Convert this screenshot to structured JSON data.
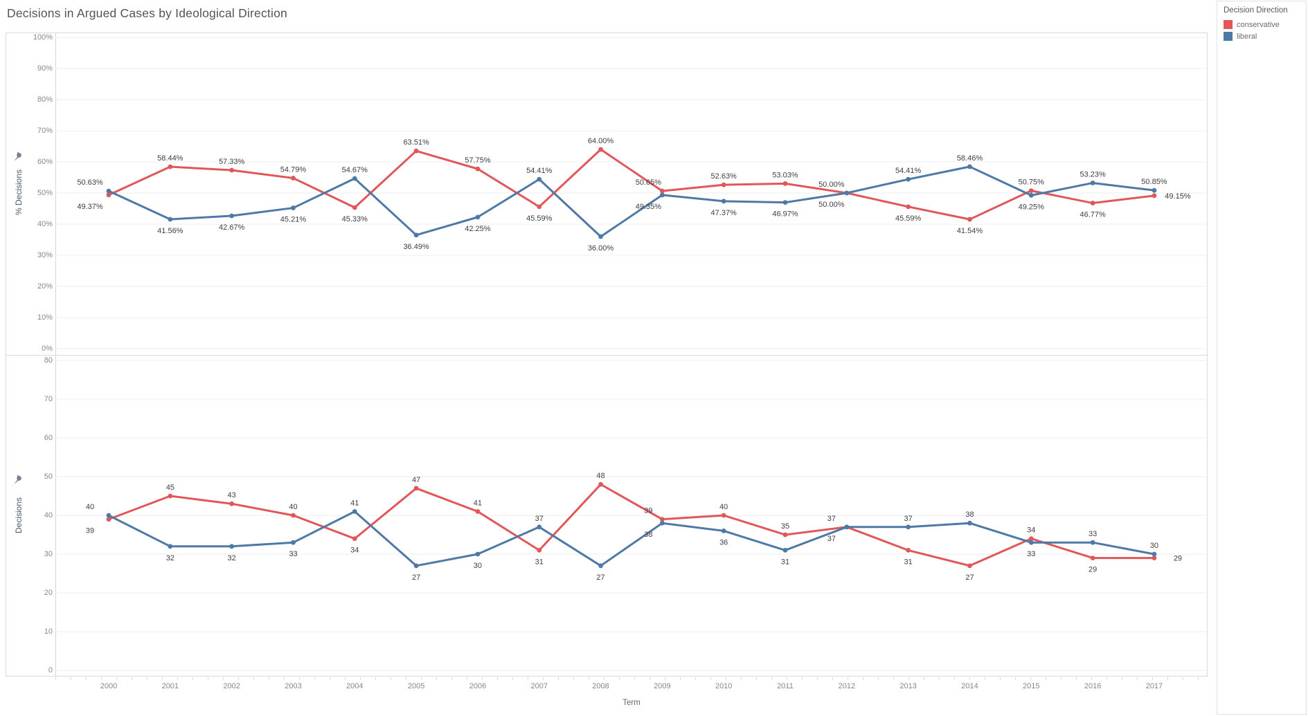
{
  "title": "Decisions in Argued Cases by Ideological Direction",
  "legend": {
    "title": "Decision Direction",
    "items": [
      {
        "label": "conservative",
        "color": "#e15759"
      },
      {
        "label": "liberal",
        "color": "#4e79a7"
      }
    ]
  },
  "axes": {
    "x_title": "Term",
    "years": [
      "2000",
      "2001",
      "2002",
      "2003",
      "2004",
      "2005",
      "2006",
      "2007",
      "2008",
      "2009",
      "2010",
      "2011",
      "2012",
      "2013",
      "2014",
      "2015",
      "2016",
      "2017"
    ]
  },
  "chart_data": [
    {
      "type": "line",
      "ylabel": "% Decisions",
      "ylim": [
        0,
        100
      ],
      "tick_step": 10,
      "tick_format": "percent",
      "value_format": "percent2",
      "grid": true,
      "categories": [
        "2000",
        "2001",
        "2002",
        "2003",
        "2004",
        "2005",
        "2006",
        "2007",
        "2008",
        "2009",
        "2010",
        "2011",
        "2012",
        "2013",
        "2014",
        "2015",
        "2016",
        "2017"
      ],
      "series": [
        {
          "name": "conservative",
          "color": "#e15759",
          "values": [
            49.37,
            58.44,
            57.33,
            54.79,
            45.33,
            63.51,
            57.75,
            45.59,
            64.0,
            50.65,
            52.63,
            53.03,
            50.0,
            45.59,
            41.54,
            50.75,
            46.77,
            49.15
          ]
        },
        {
          "name": "liberal",
          "color": "#4e79a7",
          "values": [
            50.63,
            41.56,
            42.67,
            45.21,
            54.67,
            36.49,
            42.25,
            54.41,
            36.0,
            49.35,
            47.37,
            46.97,
            50.0,
            54.41,
            58.46,
            49.25,
            53.23,
            50.85
          ]
        }
      ]
    },
    {
      "type": "line",
      "ylabel": "Decisions",
      "ylim": [
        0,
        80
      ],
      "tick_step": 10,
      "tick_format": "plain",
      "value_format": "plain",
      "grid": true,
      "categories": [
        "2000",
        "2001",
        "2002",
        "2003",
        "2004",
        "2005",
        "2006",
        "2007",
        "2008",
        "2009",
        "2010",
        "2011",
        "2012",
        "2013",
        "2014",
        "2015",
        "2016",
        "2017"
      ],
      "series": [
        {
          "name": "conservative",
          "color": "#e15759",
          "values": [
            39,
            45,
            43,
            40,
            34,
            47,
            41,
            31,
            48,
            39,
            40,
            35,
            37,
            31,
            27,
            34,
            29,
            29
          ]
        },
        {
          "name": "liberal",
          "color": "#4e79a7",
          "values": [
            40,
            32,
            32,
            33,
            41,
            27,
            30,
            37,
            27,
            38,
            36,
            31,
            37,
            37,
            38,
            33,
            33,
            30
          ]
        }
      ]
    }
  ]
}
